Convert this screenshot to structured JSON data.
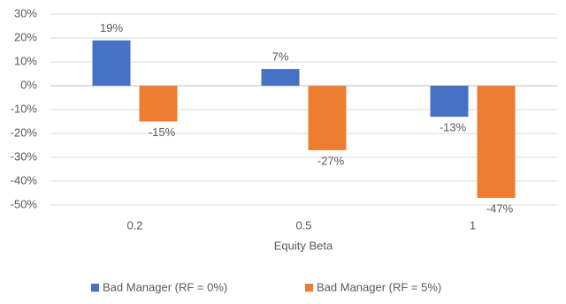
{
  "chart_data": {
    "type": "bar",
    "x_label": "Equity Beta",
    "categories": [
      "0.2",
      "0.5",
      "1"
    ],
    "series": [
      {
        "name": "Bad Manager (RF = 0%)",
        "color": "#4472c4",
        "values": [
          19,
          7,
          -13
        ],
        "value_labels": [
          "19%",
          "7%",
          "-13%"
        ]
      },
      {
        "name": "Bad Manager (RF = 5%)",
        "color": "#ed7d31",
        "values": [
          -15,
          -27,
          -47
        ],
        "value_labels": [
          "-15%",
          "-27%",
          "-47%"
        ]
      }
    ],
    "ylim": [
      -50,
      30
    ],
    "yticks": [
      {
        "value": 30,
        "label": "30%"
      },
      {
        "value": 20,
        "label": "20%"
      },
      {
        "value": 10,
        "label": "10%"
      },
      {
        "value": 0,
        "label": "0%"
      },
      {
        "value": -10,
        "label": "-10%"
      },
      {
        "value": -20,
        "label": "-20%"
      },
      {
        "value": -30,
        "label": "-30%"
      },
      {
        "value": -40,
        "label": "-40%"
      },
      {
        "value": -50,
        "label": "-50%"
      }
    ],
    "grid": true,
    "legend": "bottom"
  }
}
